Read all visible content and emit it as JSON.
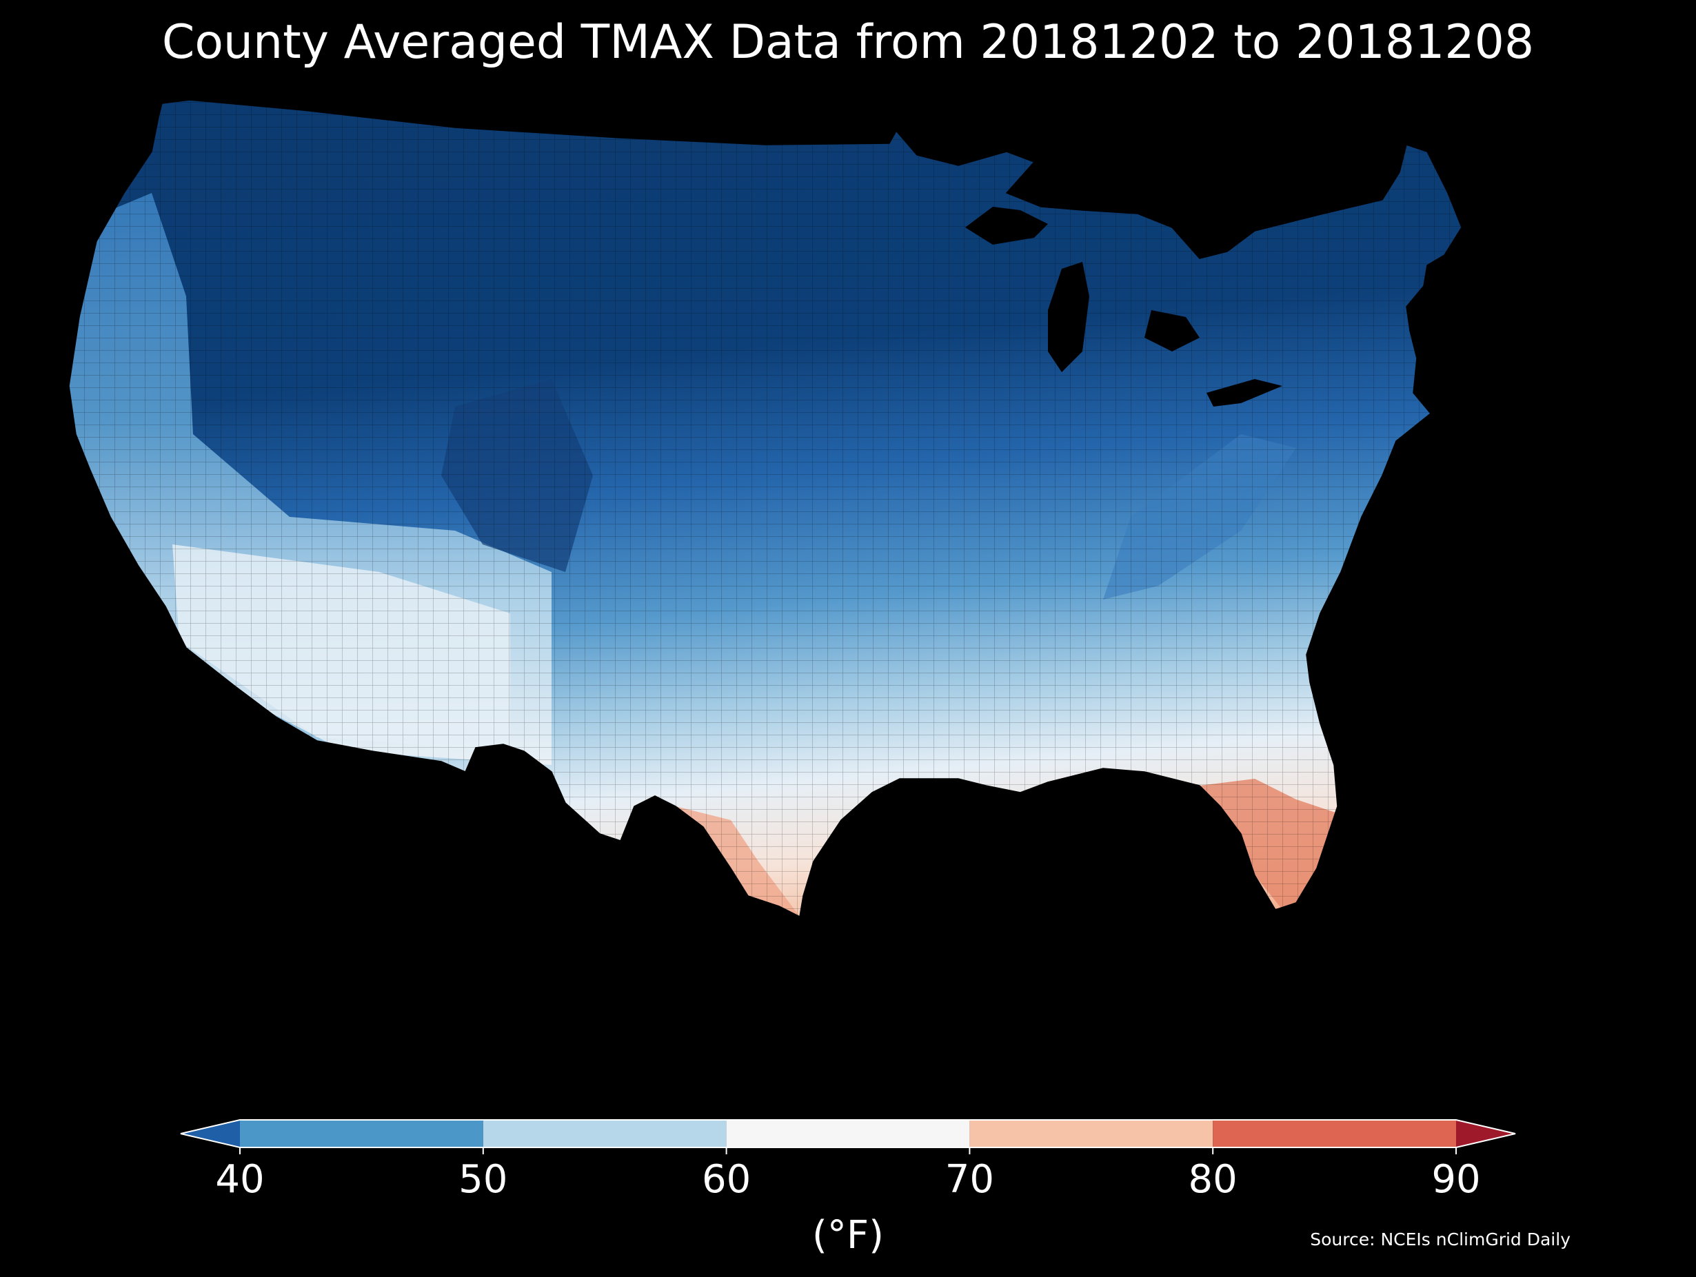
{
  "title": "County Averaged TMAX Data from 20181202 to 20181208",
  "source": "Source: NCEIs nClimGrid Daily",
  "colors": {
    "background": "#000000",
    "text": "#ffffff",
    "map_very_cold": "#0b3a6f",
    "map_cold": "#1f5fa8",
    "map_cool": "#3f86c4",
    "map_mild": "#9cc8e3",
    "map_neutral": "#eef3f7",
    "map_warm": "#f7c3a8",
    "map_hot": "#e37a61"
  },
  "map": {
    "region": "Contiguous United States",
    "style": "county choropleth"
  },
  "colorbar": {
    "unit": "(°F)",
    "ticks": [
      "40",
      "50",
      "60",
      "70",
      "80",
      "90"
    ],
    "tick_values": [
      40,
      50,
      60,
      70,
      80,
      90
    ],
    "min": 40,
    "max": 90,
    "extend": "both",
    "under_color": "#1f5fa8",
    "over_color": "#9e1a2a",
    "bins": [
      {
        "from": 40,
        "to": 50,
        "color": "#4a97c8"
      },
      {
        "from": 50,
        "to": 60,
        "color": "#b6d6e9"
      },
      {
        "from": 60,
        "to": 70,
        "color": "#f6f6f6"
      },
      {
        "from": 70,
        "to": 80,
        "color": "#f7c3a8"
      },
      {
        "from": 80,
        "to": 90,
        "color": "#de6552"
      }
    ]
  }
}
